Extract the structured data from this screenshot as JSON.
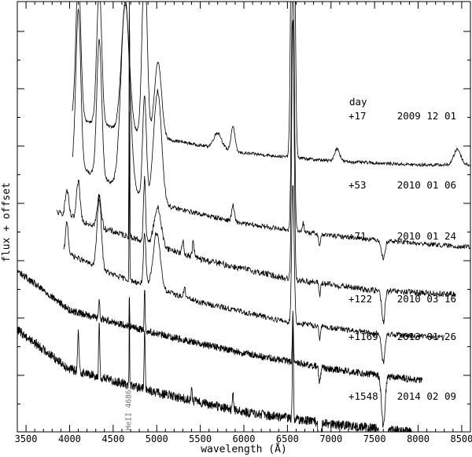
{
  "chart_data": {
    "type": "line",
    "title": "",
    "xlabel": "wavelength (Å)",
    "ylabel": "flux + offset",
    "xlim": [
      3400,
      8600
    ],
    "xticks": [
      3500,
      4000,
      4500,
      5000,
      5500,
      6000,
      6500,
      7000,
      7500,
      8000,
      8500
    ],
    "y_scale": "arbitrary (no tick labels)",
    "grid": false,
    "epoch_column_header": "day",
    "annotation": {
      "text": "HeII 4686",
      "x": 4686
    },
    "series": [
      {
        "day": "+17",
        "date": "2009 12 01",
        "x_range": [
          4030,
          8600
        ],
        "continuum": [
          {
            "x": 4030,
            "y": 3.55
          },
          {
            "x": 5000,
            "y": 3.3
          },
          {
            "x": 6000,
            "y": 3.1
          },
          {
            "x": 7000,
            "y": 3.0
          },
          {
            "x": 8000,
            "y": 2.95
          },
          {
            "x": 8600,
            "y": 2.95
          }
        ]
      },
      {
        "day": "+53",
        "date": "2010 01 06",
        "x_range": [
          4030,
          8600
        ],
        "continuum": [
          {
            "x": 4030,
            "y": 2.95
          },
          {
            "x": 5000,
            "y": 2.45
          },
          {
            "x": 6000,
            "y": 2.2
          },
          {
            "x": 7000,
            "y": 2.05
          },
          {
            "x": 8000,
            "y": 1.95
          },
          {
            "x": 8600,
            "y": 1.9
          }
        ]
      },
      {
        "day": "+71",
        "date": "2010 01 24",
        "x_range": [
          3850,
          8430
        ],
        "continuum": [
          {
            "x": 3850,
            "y": 2.35
          },
          {
            "x": 4500,
            "y": 2.1
          },
          {
            "x": 5500,
            "y": 1.75
          },
          {
            "x": 6500,
            "y": 1.5
          },
          {
            "x": 7500,
            "y": 1.35
          },
          {
            "x": 8430,
            "y": 1.3
          }
        ]
      },
      {
        "day": "+122",
        "date": "2010 03 16",
        "x_range": [
          3930,
          8300
        ],
        "continuum": [
          {
            "x": 3930,
            "y": 1.85
          },
          {
            "x": 4500,
            "y": 1.55
          },
          {
            "x": 5500,
            "y": 1.2
          },
          {
            "x": 6500,
            "y": 0.95
          },
          {
            "x": 7500,
            "y": 0.8
          },
          {
            "x": 8300,
            "y": 0.75
          }
        ]
      },
      {
        "day": "+1169",
        "date": "2013 01 26",
        "x_range": [
          3400,
          8050
        ],
        "continuum": [
          {
            "x": 3400,
            "y": 1.6
          },
          {
            "x": 3700,
            "y": 1.35
          },
          {
            "x": 4000,
            "y": 1.1
          },
          {
            "x": 5000,
            "y": 0.8
          },
          {
            "x": 6000,
            "y": 0.55
          },
          {
            "x": 7000,
            "y": 0.35
          },
          {
            "x": 8050,
            "y": 0.2
          }
        ]
      },
      {
        "day": "+1548",
        "date": "2014 02 09",
        "x_range": [
          3400,
          7950
        ],
        "continuum": [
          {
            "x": 3400,
            "y": 0.85
          },
          {
            "x": 3700,
            "y": 0.6
          },
          {
            "x": 4000,
            "y": 0.35
          },
          {
            "x": 5000,
            "y": 0.05
          },
          {
            "x": 6000,
            "y": -0.2
          },
          {
            "x": 7000,
            "y": -0.35
          },
          {
            "x": 7950,
            "y": -0.45
          }
        ]
      }
    ]
  }
}
